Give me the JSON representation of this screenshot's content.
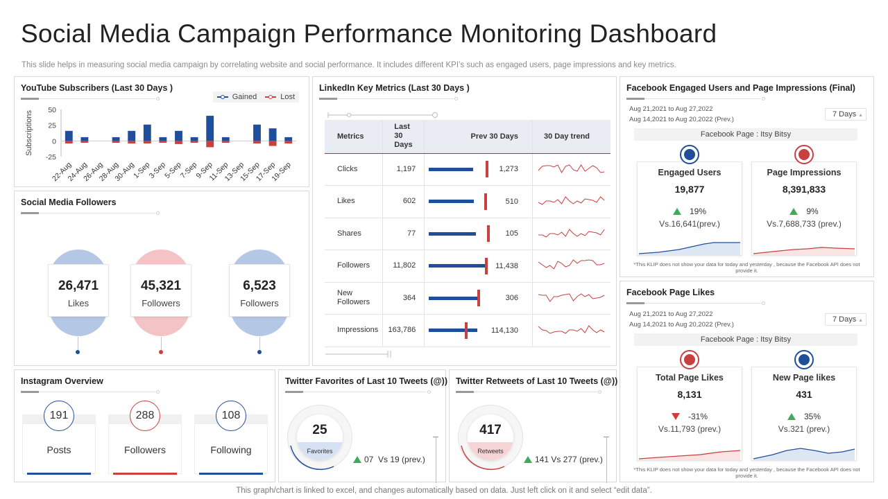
{
  "page": {
    "title": "Social Media Campaign Performance Monitoring Dashboard",
    "subtitle": "This slide helps in measuring social media campaign by correlating website and social performance. It includes different KPI’s such as engaged users, page impressions and key metrics.",
    "footer": "This graph/chart is linked to excel,  and changes automatically based on data. Just left click on it and select “edit data”."
  },
  "colors": {
    "blue": "#1f4e9a",
    "red": "#c84040",
    "green": "#3eaa5a",
    "light_blue": "#b4c7e4",
    "light_red": "#f3c3c6"
  },
  "youtube": {
    "title": "YouTube Subscribers (Last 30 Days )",
    "legend_gained": "Gained",
    "legend_lost": "Lost"
  },
  "chart_data": {
    "type": "bar",
    "title": "YouTube Subscribers (Last 30 Days )",
    "xlabel": "",
    "ylabel": "Subscriptions",
    "ylim": [
      -25,
      50
    ],
    "yticks": [
      50,
      25,
      0,
      -25
    ],
    "categories": [
      "22-Aug",
      "24-Aug",
      "26-Aug",
      "28-Aug",
      "30-Aug",
      "1-Sep",
      "3-Sep",
      "5-Sep",
      "7-Sep",
      "9-Sep",
      "11-Sep",
      "13-Sep",
      "15-Sep",
      "17-Sep",
      "19-Sep"
    ],
    "series": [
      {
        "name": "Gained",
        "color": "#1f4e9a",
        "values": [
          16,
          6,
          0,
          6,
          16,
          26,
          6,
          16,
          6,
          40,
          6,
          0,
          26,
          20,
          6
        ]
      },
      {
        "name": "Lost",
        "color": "#c84040",
        "values": [
          -4,
          -3,
          0,
          -3,
          -4,
          -4,
          -3,
          -5,
          -3,
          -10,
          -3,
          0,
          -4,
          -8,
          -4
        ]
      }
    ],
    "legend": "top-right",
    "grid": false
  },
  "followers": {
    "title": "Social Media Followers",
    "items": [
      {
        "value": "26,471",
        "label": "Likes",
        "color": "#b4c7e4",
        "dot": "#1f4e9a"
      },
      {
        "value": "45,321",
        "label": "Followers",
        "color": "#f3c3c6",
        "dot": "#c84040"
      },
      {
        "value": "6,523",
        "label": "Followers",
        "color": "#b4c7e4",
        "dot": "#1f4e9a"
      }
    ]
  },
  "linkedin": {
    "title": "LinkedIn Key Metrics (Last 30 Days )",
    "headers": {
      "metrics": "Metrics",
      "last": "Last 30 Days",
      "prev": "Prev 30 Days",
      "trend": "30 Day trend"
    },
    "rows": [
      {
        "metric": "Clicks",
        "last": "1,197",
        "prev": "1,273",
        "bar_fraction": 0.58,
        "marker_fraction": 0.78
      },
      {
        "metric": "Likes",
        "last": "602",
        "prev": "510",
        "bar_fraction": 0.59,
        "marker_fraction": 0.76
      },
      {
        "metric": "Shares",
        "last": "77",
        "prev": "105",
        "bar_fraction": 0.62,
        "marker_fraction": 0.8
      },
      {
        "metric": "Followers",
        "last": "11,802",
        "prev": "11,438",
        "bar_fraction": 0.78,
        "marker_fraction": 0.77
      },
      {
        "metric": "New Followers",
        "last": "364",
        "prev": "306",
        "bar_fraction": 0.68,
        "marker_fraction": 0.66
      },
      {
        "metric": "Impressions",
        "last": "163,786",
        "prev": "114,130",
        "bar_fraction": 0.64,
        "marker_fraction": 0.49
      }
    ]
  },
  "fb_engaged": {
    "title": "Facebook Engaged Users and Page Impressions (Final)",
    "date_current": "Aug 21,2021 to Aug 27,2022",
    "date_prev": "Aug 14,2021 to Aug 20,2022 (Prev.)",
    "select": "7 Days",
    "page": "Facebook Page : Itsy Bitsy",
    "cards": [
      {
        "heading": "Engaged Users",
        "value": "19,877",
        "change": "19%",
        "direction": "up",
        "prev": "Vs.16,641(prev.)"
      },
      {
        "heading": "Page Impressions",
        "value": "8,391,833",
        "change": "9%",
        "direction": "up",
        "prev": "Vs.7,688,733 (prev.)"
      }
    ],
    "note": "*This KLIP does not show your data for today and yesterday , because the Facebook API does not provide it."
  },
  "fb_likes": {
    "title": "Facebook Page Likes",
    "date_current": "Aug 21,2021 to Aug 27,2022",
    "date_prev": "Aug 14,2021 to Aug 20,2022 (Prev.)",
    "select": "7 Days",
    "page": "Facebook Page : Itsy Bitsy",
    "cards": [
      {
        "heading": "Total Page Likes",
        "value": "8,131",
        "change": "-31%",
        "direction": "down",
        "prev": "Vs.11,793 (prev.)"
      },
      {
        "heading": "New Page likes",
        "value": "431",
        "change": "35%",
        "direction": "up",
        "prev": "Vs.321 (prev.)"
      }
    ],
    "note": "*This KLIP does not show your data for today and yesterday , because the Facebook API does not provide it."
  },
  "instagram": {
    "title": "Instagram Overview",
    "items": [
      {
        "value": "191",
        "label": "Posts",
        "color": "#1f4e9a"
      },
      {
        "value": "288",
        "label": "Followers",
        "color": "#c84040"
      },
      {
        "value": "108",
        "label": "Following",
        "color": "#1f4e9a"
      }
    ]
  },
  "tw_fav": {
    "title": "Twitter Favorites of Last 10 Tweets (@))",
    "value": "25",
    "caption": "Favorites",
    "change": "07",
    "vs": "Vs 19 (prev.)"
  },
  "tw_rt": {
    "title": "Twitter Retweets of Last 10 Tweets (@))",
    "value": "417",
    "caption": "Retweets",
    "change": "141",
    "vs": "Vs 277 (prev.)"
  }
}
